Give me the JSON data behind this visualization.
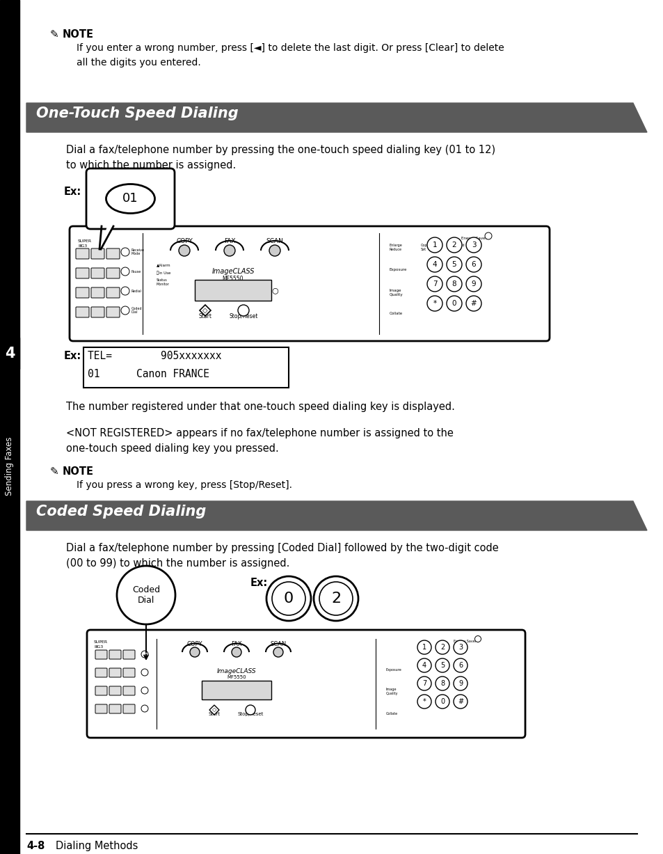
{
  "page_bg": "#ffffff",
  "header_bar_color": "#5a5a5a",
  "section1_title": "One-Touch Speed Dialing",
  "section2_title": "Coded Speed Dialing",
  "note_text1": "If you enter a wrong number, press [◄] to delete the last digit. Or press [Clear] to delete\nall the digits you entered.",
  "section1_body1": "Dial a fax/telephone number by pressing the one-touch speed dialing key (01 to 12)\nto which the number is assigned.",
  "ex_label": "Ex:",
  "display_line1": "TEL=        905xxxxxxx",
  "display_line2": "01      Canon FRANCE",
  "text_after_display": "The number registered under that one-touch speed dialing key is displayed.",
  "text_not_registered": "<NOT REGISTERED> appears if no fax/telephone number is assigned to the\none-touch speed dialing key you pressed.",
  "note_text2": "If you press a wrong key, press [Stop/Reset].",
  "section2_body1": "Dial a fax/telephone number by pressing [Coded Dial] followed by the two-digit code\n(00 to 99) to which the number is assigned.",
  "footer_text": "4-8",
  "footer_subtext": "Dialing Methods",
  "chapter_num": "4",
  "sidebar_text": "Sending Faxes",
  "note_label": "NOTE",
  "nums": [
    "1",
    "2",
    "3",
    "4",
    "5",
    "6",
    "7",
    "8",
    "9",
    "*",
    "0",
    "#"
  ]
}
